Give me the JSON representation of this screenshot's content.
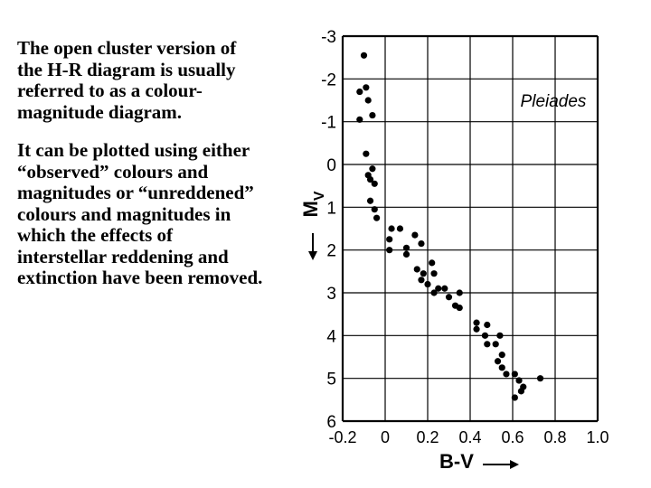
{
  "slide_text": {
    "paragraph_1": "The open cluster version of the H-R diagram is usually referred to as a colour-magnitude diagram.",
    "paragraph_2": "It can be plotted using either “observed” colours and magnitudes or “unreddened” colours and magnitudes in which the effects of interstellar reddening and extinction have been removed."
  },
  "chart_data": {
    "type": "scatter",
    "title": "",
    "annotation": "Pleiades",
    "xlabel": "B-V",
    "ylabel": "MV",
    "ylabel_main": "M",
    "ylabel_sub": "V",
    "xlim": [
      -0.2,
      1.0
    ],
    "ylim": [
      6,
      -3
    ],
    "y_inverted": true,
    "grid": true,
    "x_ticks": [
      -0.2,
      0,
      0.2,
      0.4,
      0.6,
      0.8,
      1.0
    ],
    "x_tick_labels": [
      "-0.2",
      "0",
      "0.2",
      "0.4",
      "0.6",
      "0.8",
      "1.0"
    ],
    "y_ticks": [
      -3,
      -2,
      -1,
      0,
      1,
      2,
      3,
      4,
      5,
      6
    ],
    "y_tick_labels": [
      "-3",
      "-2",
      "-1",
      "0",
      "1",
      "2",
      "3",
      "4",
      "5",
      "6"
    ],
    "color": "#000000",
    "points": [
      {
        "x": -0.1,
        "y": -2.55
      },
      {
        "x": -0.12,
        "y": -1.7
      },
      {
        "x": -0.09,
        "y": -1.8
      },
      {
        "x": -0.08,
        "y": -1.5
      },
      {
        "x": -0.06,
        "y": -1.15
      },
      {
        "x": -0.12,
        "y": -1.05
      },
      {
        "x": -0.09,
        "y": -0.25
      },
      {
        "x": -0.06,
        "y": 0.1
      },
      {
        "x": -0.08,
        "y": 0.25
      },
      {
        "x": -0.07,
        "y": 0.35
      },
      {
        "x": -0.05,
        "y": 0.45
      },
      {
        "x": -0.07,
        "y": 0.85
      },
      {
        "x": -0.05,
        "y": 1.05
      },
      {
        "x": -0.04,
        "y": 1.25
      },
      {
        "x": 0.03,
        "y": 1.5
      },
      {
        "x": 0.07,
        "y": 1.5
      },
      {
        "x": 0.02,
        "y": 1.75
      },
      {
        "x": 0.14,
        "y": 1.65
      },
      {
        "x": 0.1,
        "y": 1.95
      },
      {
        "x": 0.17,
        "y": 1.85
      },
      {
        "x": 0.02,
        "y": 2.0
      },
      {
        "x": 0.1,
        "y": 2.1
      },
      {
        "x": 0.22,
        "y": 2.3
      },
      {
        "x": 0.15,
        "y": 2.45
      },
      {
        "x": 0.18,
        "y": 2.55
      },
      {
        "x": 0.23,
        "y": 2.55
      },
      {
        "x": 0.17,
        "y": 2.7
      },
      {
        "x": 0.2,
        "y": 2.8
      },
      {
        "x": 0.25,
        "y": 2.9
      },
      {
        "x": 0.28,
        "y": 2.9
      },
      {
        "x": 0.23,
        "y": 3.0
      },
      {
        "x": 0.3,
        "y": 3.1
      },
      {
        "x": 0.35,
        "y": 3.0
      },
      {
        "x": 0.33,
        "y": 3.3
      },
      {
        "x": 0.35,
        "y": 3.35
      },
      {
        "x": 0.43,
        "y": 3.7
      },
      {
        "x": 0.48,
        "y": 3.75
      },
      {
        "x": 0.43,
        "y": 3.85
      },
      {
        "x": 0.47,
        "y": 4.0
      },
      {
        "x": 0.54,
        "y": 4.0
      },
      {
        "x": 0.48,
        "y": 4.2
      },
      {
        "x": 0.52,
        "y": 4.2
      },
      {
        "x": 0.55,
        "y": 4.45
      },
      {
        "x": 0.53,
        "y": 4.6
      },
      {
        "x": 0.55,
        "y": 4.75
      },
      {
        "x": 0.57,
        "y": 4.9
      },
      {
        "x": 0.61,
        "y": 4.9
      },
      {
        "x": 0.63,
        "y": 5.05
      },
      {
        "x": 0.65,
        "y": 5.2
      },
      {
        "x": 0.64,
        "y": 5.3
      },
      {
        "x": 0.61,
        "y": 5.45
      },
      {
        "x": 0.73,
        "y": 5.0
      }
    ]
  }
}
